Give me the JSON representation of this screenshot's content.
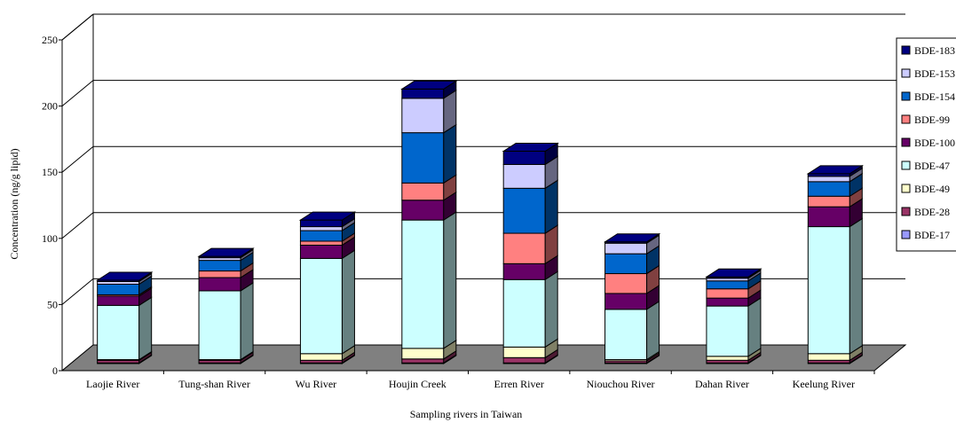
{
  "chart_data": {
    "type": "bar",
    "stacked": true,
    "three_d": true,
    "title": "",
    "xlabel": "Sampling rivers in Taiwan",
    "ylabel": "Concentration (ng/g lipid)",
    "ylim": [
      0,
      250
    ],
    "yticks": [
      0,
      50,
      100,
      150,
      200,
      250
    ],
    "grid": true,
    "legend_position": "right",
    "categories": [
      "Laojie River",
      "Tung-shan River",
      "Wu River",
      "Houjin Creek",
      "Erren River",
      "Niouchou River",
      "Dahan River",
      "Keelung River"
    ],
    "series": [
      {
        "name": "BDE-17",
        "color": "#9999ff",
        "values": [
          0.5,
          0.5,
          0.5,
          0.5,
          0.5,
          0.5,
          0.5,
          0.5
        ]
      },
      {
        "name": "BDE-28",
        "color": "#993366",
        "values": [
          2,
          2,
          2,
          3,
          4,
          1.5,
          2,
          2
        ]
      },
      {
        "name": "BDE-49",
        "color": "#ffffcc",
        "values": [
          0.5,
          0.5,
          5,
          8,
          8,
          1,
          3,
          5
        ]
      },
      {
        "name": "BDE-47",
        "color": "#ccffff",
        "values": [
          41,
          52,
          72,
          97,
          51,
          38,
          38,
          96
        ]
      },
      {
        "name": "BDE-100",
        "color": "#660066",
        "values": [
          7,
          10,
          10,
          15,
          12,
          12,
          6,
          15
        ]
      },
      {
        "name": "BDE-99",
        "color": "#ff8080",
        "values": [
          1,
          5,
          3,
          13,
          23,
          15,
          7,
          8
        ]
      },
      {
        "name": "BDE-154",
        "color": "#0066cc",
        "values": [
          8,
          8,
          8,
          38,
          34,
          15,
          6,
          11
        ]
      },
      {
        "name": "BDE-153",
        "color": "#ccccff",
        "values": [
          2,
          2,
          3,
          26,
          18,
          8,
          2,
          4
        ]
      },
      {
        "name": "BDE-183",
        "color": "#000080",
        "values": [
          1,
          1,
          5,
          7,
          10,
          1,
          1,
          2
        ]
      }
    ]
  }
}
